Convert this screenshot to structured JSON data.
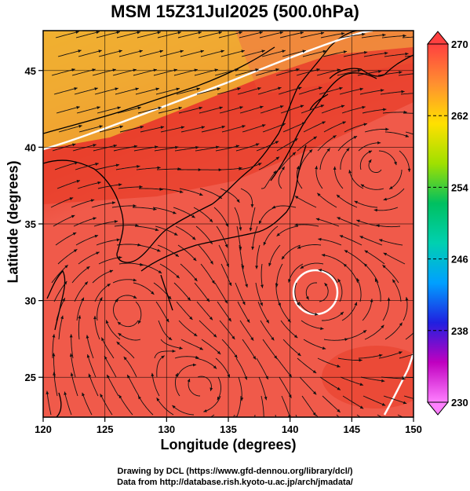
{
  "title": "MSM 15Z31Jul2025 (500.0hPa)",
  "map": {
    "xlabel": "Longitude (degrees)",
    "ylabel": "Latitude  (degrees)",
    "lon_range": [
      120,
      150
    ],
    "lat_range": [
      22.4,
      47.6
    ],
    "lon_ticks": [
      "120",
      "125",
      "130",
      "135",
      "140",
      "145",
      "150"
    ],
    "lat_ticks": [
      "25",
      "30",
      "35",
      "40",
      "45"
    ],
    "colors": {
      "warm_red": "#f05a4a",
      "deep_red": "#e8402c",
      "orange": "#f08040",
      "yellow_orange": "#f0b030"
    }
  },
  "colorbar": {
    "min": 230,
    "max": 270,
    "tick_labels": [
      "270",
      "262",
      "254",
      "246",
      "238",
      "230"
    ],
    "stops": [
      "#ff80ff",
      "#c000c0",
      "#2020e0",
      "#00a0ff",
      "#00d0b0",
      "#00c060",
      "#a0e000",
      "#ffe000",
      "#ff9030",
      "#ff4040"
    ]
  },
  "credits": {
    "line1": "Drawing by DCL (https://www.gfd-dennou.org/library/dcl/)",
    "line2": "Data from http://database.rish.kyoto-u.ac.jp/arch/jmadata/"
  }
}
